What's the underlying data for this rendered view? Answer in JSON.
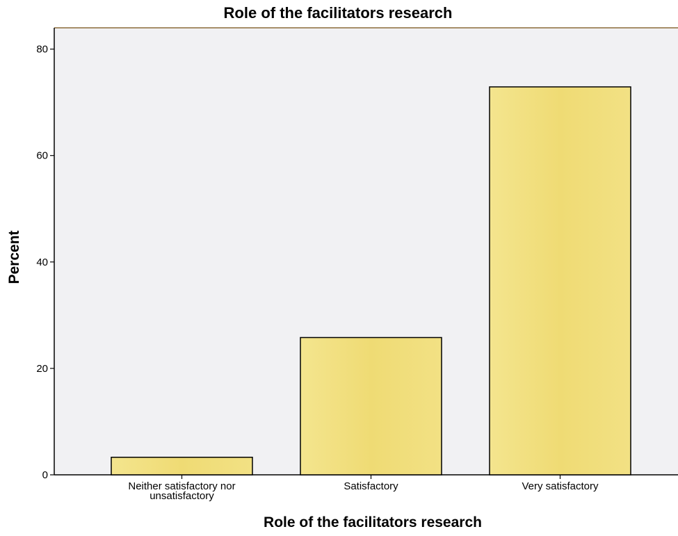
{
  "chart_data": {
    "type": "bar",
    "title": "Role of the facilitators research",
    "xlabel": "Role of the facilitators research",
    "ylabel": "Percent",
    "categories": [
      [
        "Neither satisfactory nor",
        "unsatisfactory"
      ],
      [
        "Satisfactory"
      ],
      [
        "Very satisfactory"
      ]
    ],
    "values": [
      3.3,
      25.8,
      72.9
    ],
    "ylim": [
      0,
      84
    ],
    "yticks": [
      0,
      20,
      40,
      60,
      80
    ],
    "grid": false,
    "legend": "none",
    "colors": {
      "plot_background": "#f1f1f3",
      "bar_fill": "#f0de7c",
      "bar_stroke": "#000000",
      "frame": "#8b6b3a"
    }
  }
}
